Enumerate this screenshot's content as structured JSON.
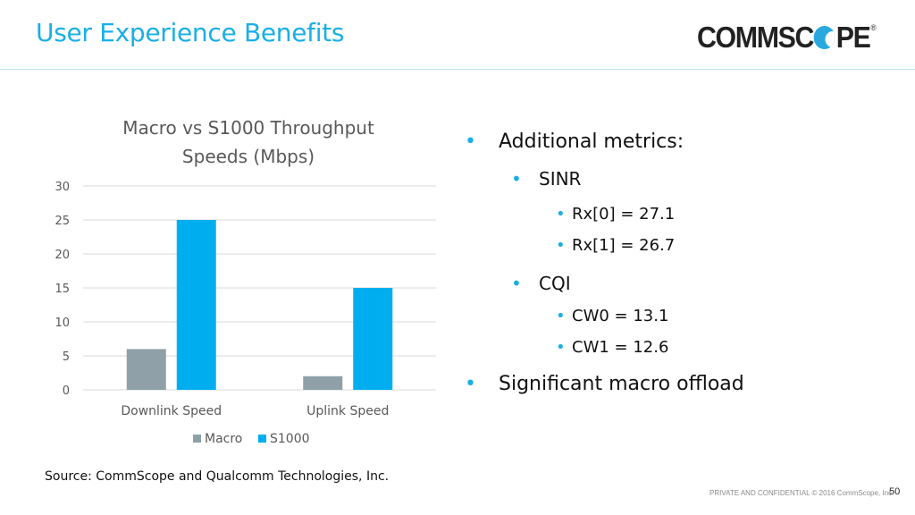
{
  "header": {
    "title": "User Experience Benefits",
    "logo_text_left": "COMMSC",
    "logo_text_right": "PE",
    "logo_registered": "®"
  },
  "colors": {
    "accent": "#1aafe6",
    "macro": "#8fa0a8",
    "s1000": "#00aeef"
  },
  "chart_data": {
    "type": "bar",
    "title": "Macro vs S1000 Throughput Speeds (Mbps)",
    "title_lines": [
      "Macro vs S1000 Throughput",
      "Speeds (Mbps)"
    ],
    "categories": [
      "Downlink Speed",
      "Uplink Speed"
    ],
    "series": [
      {
        "name": "Macro",
        "values": [
          6,
          2
        ]
      },
      {
        "name": "S1000",
        "values": [
          25,
          15
        ]
      }
    ],
    "xlabel": "",
    "ylabel": "",
    "ylim": [
      0,
      30
    ],
    "yticks": [
      0,
      5,
      10,
      15,
      20,
      25,
      30
    ],
    "grid": true,
    "legend": "bottom"
  },
  "bullets": [
    {
      "level": 1,
      "text": "Additional metrics:"
    },
    {
      "level": 2,
      "text": "SINR"
    },
    {
      "level": 3,
      "text": "Rx[0] = 27.1"
    },
    {
      "level": 3,
      "text": "Rx[1] = 26.7"
    },
    {
      "level": 2,
      "text": "CQI"
    },
    {
      "level": 3,
      "text": "CW0 = 13.1"
    },
    {
      "level": 3,
      "text": "CW1 = 12.6"
    },
    {
      "level": 1,
      "text": "Significant macro offload"
    }
  ],
  "bullet_glyph": "•",
  "source": "Source: CommScope and Qualcomm Technologies, Inc.",
  "footer": {
    "confidential": "PRIVATE AND CONFIDENTIAL © 2016  CommScope, Inc",
    "page_number": "50"
  }
}
